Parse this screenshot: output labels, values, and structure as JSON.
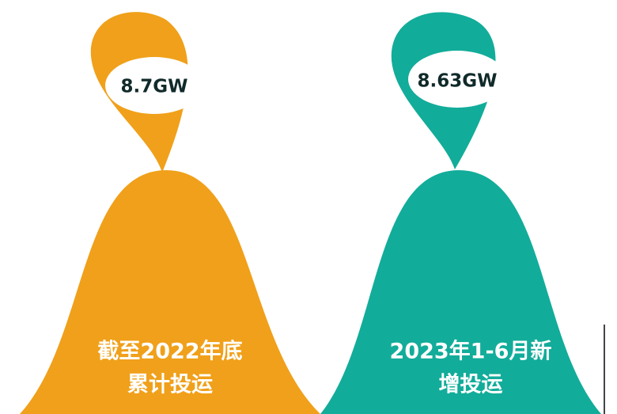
{
  "items": [
    {
      "value": "8.7GW",
      "label_lines": [
        "截至2022年底",
        "累计投运"
      ]
    },
    {
      "value": "8.63GW",
      "label_lines": [
        "2023年1-6月新",
        "增投运"
      ]
    }
  ]
}
